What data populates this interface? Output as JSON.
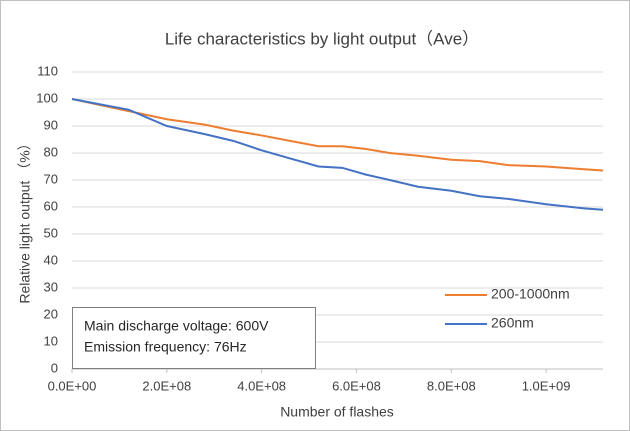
{
  "chart_data": {
    "type": "line",
    "title": "Life characteristics by light output（Ave）",
    "x_label": "Number of flashes",
    "y_label": "Relative light output （%）",
    "x": [
      0,
      120000000,
      200000000,
      280000000,
      340000000,
      400000000,
      460000000,
      520000000,
      570000000,
      620000000,
      670000000,
      730000000,
      800000000,
      860000000,
      920000000,
      1000000000,
      1080000000,
      1120000000
    ],
    "series": [
      {
        "name": "200-1000nm",
        "color": "#ED7D31",
        "values": [
          100,
          95.5,
          92.5,
          90.5,
          88.3,
          86.5,
          84.5,
          82.5,
          82.5,
          81.5,
          80,
          79,
          77.5,
          77,
          75.5,
          75,
          74,
          73.5
        ]
      },
      {
        "name": "260nm",
        "color": "#4472C4",
        "values": [
          100,
          96,
          90,
          87,
          84.5,
          81,
          78,
          75,
          74.5,
          72,
          70,
          67.5,
          66,
          64,
          63,
          61,
          59.5,
          59
        ]
      }
    ],
    "xlim": [
      0,
      1120000000
    ],
    "xticks": [
      {
        "value": 0,
        "label": "0.0E+00"
      },
      {
        "value": 200000000,
        "label": "2.0E+08"
      },
      {
        "value": 400000000,
        "label": "4.0E+08"
      },
      {
        "value": 600000000,
        "label": "6.0E+08"
      },
      {
        "value": 800000000,
        "label": "8.0E+08"
      },
      {
        "value": 1000000000,
        "label": "1.0E+09"
      }
    ],
    "ylim": [
      0,
      110
    ],
    "yticks": [
      0,
      10,
      20,
      30,
      40,
      50,
      60,
      70,
      80,
      90,
      100,
      110
    ],
    "grid": true,
    "annotations": [
      "Main discharge voltage: 600V",
      "Emission frequency: 76Hz"
    ]
  }
}
